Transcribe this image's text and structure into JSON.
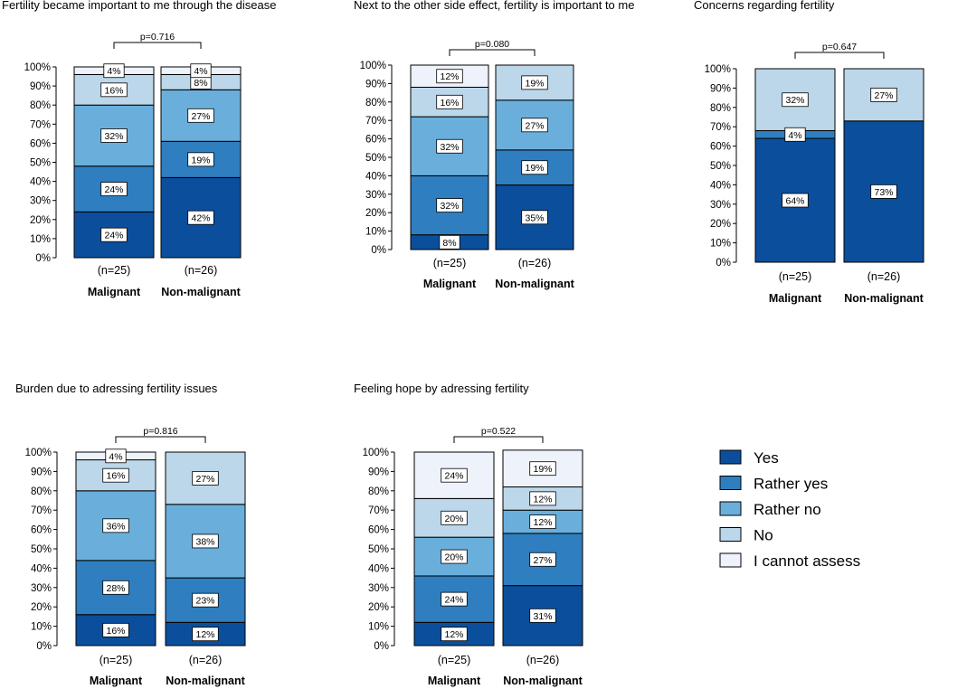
{
  "colors": {
    "Yes": "#0b4f9c",
    "Rather yes": "#2f7ebf",
    "Rather no": "#6aafdc",
    "No": "#bcd7ea",
    "I cannot assess": "#eef2fb"
  },
  "legend": {
    "items": [
      "Yes",
      "Rather yes",
      "Rather no",
      "No",
      "I cannot assess"
    ]
  },
  "chart_data": [
    {
      "type": "bar",
      "stacked": true,
      "title": "Fertility became important to me through the disease",
      "p_value": "p=0.716",
      "ylim": [
        0,
        100
      ],
      "yticks": [
        "0%",
        "10%",
        "20%",
        "30%",
        "40%",
        "50%",
        "60%",
        "70%",
        "80%",
        "90%",
        "100%"
      ],
      "categories": [
        "Malignant",
        "Non-malignant"
      ],
      "n_labels": [
        "(n=25)",
        "(n=26)"
      ],
      "series": [
        {
          "name": "Yes",
          "values": [
            24,
            42
          ],
          "labels": [
            "24%",
            "42%"
          ]
        },
        {
          "name": "Rather yes",
          "values": [
            24,
            19
          ],
          "labels": [
            "24%",
            "19%"
          ]
        },
        {
          "name": "Rather no",
          "values": [
            32,
            27
          ],
          "labels": [
            "32%",
            "27%"
          ]
        },
        {
          "name": "No",
          "values": [
            16,
            8
          ],
          "labels": [
            "16%",
            "8%"
          ]
        },
        {
          "name": "I cannot assess",
          "values": [
            4,
            4
          ],
          "labels": [
            "4%",
            "4%"
          ]
        }
      ]
    },
    {
      "type": "bar",
      "stacked": true,
      "title": "Next to the other side effect, fertility is important to me",
      "p_value": "p=0.080",
      "ylim": [
        0,
        100
      ],
      "yticks": [
        "0%",
        "10%",
        "20%",
        "30%",
        "40%",
        "50%",
        "60%",
        "70%",
        "80%",
        "90%",
        "100%"
      ],
      "categories": [
        "Malignant",
        "Non-malignant"
      ],
      "n_labels": [
        "(n=25)",
        "(n=26)"
      ],
      "series": [
        {
          "name": "Yes",
          "values": [
            8,
            35
          ],
          "labels": [
            "8%",
            "35%"
          ]
        },
        {
          "name": "Rather yes",
          "values": [
            32,
            19
          ],
          "labels": [
            "32%",
            "19%"
          ]
        },
        {
          "name": "Rather no",
          "values": [
            32,
            27
          ],
          "labels": [
            "32%",
            "27%"
          ]
        },
        {
          "name": "No",
          "values": [
            16,
            19
          ],
          "labels": [
            "16%",
            "19%"
          ]
        },
        {
          "name": "I cannot assess",
          "values": [
            12,
            0
          ],
          "labels": [
            "12%",
            ""
          ]
        }
      ]
    },
    {
      "type": "bar",
      "stacked": true,
      "title": "Concerns regarding fertility",
      "p_value": "p=0.647",
      "ylim": [
        0,
        100
      ],
      "yticks": [
        "0%",
        "10%",
        "20%",
        "30%",
        "40%",
        "50%",
        "60%",
        "70%",
        "80%",
        "90%",
        "100%"
      ],
      "categories": [
        "Malignant",
        "Non-malignant"
      ],
      "n_labels": [
        "(n=25)",
        "(n=26)"
      ],
      "series": [
        {
          "name": "Yes",
          "values": [
            64,
            73
          ],
          "labels": [
            "64%",
            "73%"
          ]
        },
        {
          "name": "Rather yes",
          "values": [
            4,
            0
          ],
          "labels": [
            "4%",
            ""
          ]
        },
        {
          "name": "Rather no",
          "values": [
            0,
            0
          ],
          "labels": [
            "",
            ""
          ]
        },
        {
          "name": "No",
          "values": [
            32,
            27
          ],
          "labels": [
            "32%",
            "27%"
          ]
        },
        {
          "name": "I cannot assess",
          "values": [
            0,
            0
          ],
          "labels": [
            "",
            ""
          ]
        }
      ]
    },
    {
      "type": "bar",
      "stacked": true,
      "title": "Burden due to adressing fertility issues",
      "p_value": "p=0.816",
      "ylim": [
        0,
        100
      ],
      "yticks": [
        "0%",
        "10%",
        "20%",
        "30%",
        "40%",
        "50%",
        "60%",
        "70%",
        "80%",
        "90%",
        "100%"
      ],
      "categories": [
        "Malignant",
        "Non-malignant"
      ],
      "n_labels": [
        "(n=25)",
        "(n=26)"
      ],
      "series": [
        {
          "name": "Yes",
          "values": [
            16,
            12
          ],
          "labels": [
            "16%",
            "12%"
          ]
        },
        {
          "name": "Rather yes",
          "values": [
            28,
            23
          ],
          "labels": [
            "28%",
            "23%"
          ]
        },
        {
          "name": "Rather no",
          "values": [
            36,
            38
          ],
          "labels": [
            "36%",
            "38%"
          ]
        },
        {
          "name": "No",
          "values": [
            16,
            27
          ],
          "labels": [
            "16%",
            "27%"
          ]
        },
        {
          "name": "I cannot assess",
          "values": [
            4,
            0
          ],
          "labels": [
            "4%",
            ""
          ]
        }
      ]
    },
    {
      "type": "bar",
      "stacked": true,
      "title": "Feeling hope by adressing fertility",
      "p_value": "p=0.522",
      "ylim": [
        0,
        100
      ],
      "yticks": [
        "0%",
        "10%",
        "20%",
        "30%",
        "40%",
        "50%",
        "60%",
        "70%",
        "80%",
        "90%",
        "100%"
      ],
      "categories": [
        "Malignant",
        "Non-malignant"
      ],
      "n_labels": [
        "(n=25)",
        "(n=26)"
      ],
      "series": [
        {
          "name": "Yes",
          "values": [
            12,
            31
          ],
          "labels": [
            "12%",
            "31%"
          ]
        },
        {
          "name": "Rather yes",
          "values": [
            24,
            27
          ],
          "labels": [
            "24%",
            "27%"
          ]
        },
        {
          "name": "Rather no",
          "values": [
            20,
            12
          ],
          "labels": [
            "20%",
            "12%"
          ]
        },
        {
          "name": "No",
          "values": [
            20,
            12
          ],
          "labels": [
            "20%",
            "12%"
          ]
        },
        {
          "name": "I cannot assess",
          "values": [
            24,
            19
          ],
          "labels": [
            "24%",
            "19%"
          ]
        }
      ]
    }
  ]
}
